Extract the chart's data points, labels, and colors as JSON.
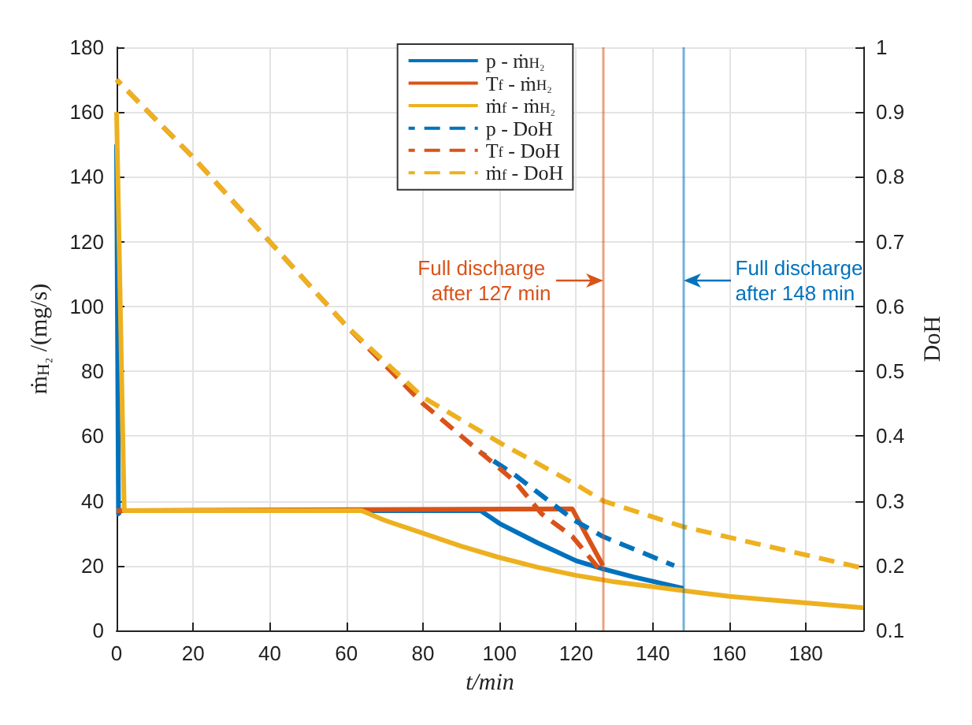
{
  "chart_data": {
    "type": "line",
    "xlabel": "t/min",
    "ylabel": "ṁ$_{H₂}$ /(mg/s)",
    "y2label": "DoH",
    "xlim": [
      0,
      195
    ],
    "xticks": [
      0,
      20,
      40,
      60,
      80,
      100,
      120,
      140,
      160,
      180
    ],
    "ylim": [
      0,
      180
    ],
    "yticks": [
      0,
      20,
      40,
      60,
      80,
      100,
      120,
      140,
      160,
      180
    ],
    "y2lim": [
      0.1,
      1
    ],
    "y2ticks": [
      0.1,
      0.2,
      0.3,
      0.4,
      0.5,
      0.6,
      0.7,
      0.8,
      0.9,
      1
    ],
    "grid": true,
    "legend": "top",
    "marker": "none",
    "series": [
      {
        "name": "p - ṁ$_{H₂}$",
        "color": "#0072bd",
        "line_style": "solid",
        "x": [
          0,
          0.5,
          1,
          95,
          100,
          110,
          120,
          127,
          135,
          148
        ],
        "values": [
          150,
          36,
          37,
          37,
          33,
          27,
          21.5,
          19,
          16.5,
          13
        ]
      },
      {
        "name": "T$_{f}$ - ṁ$_{H₂}$",
        "color": "#d95319",
        "line_style": "solid",
        "x": [
          0,
          0.5,
          119,
          127
        ],
        "values": [
          37,
          37,
          37.5,
          20
        ]
      },
      {
        "name": "ṁ$_{f}$ - ṁ$_{H₂}$",
        "color": "#edb120",
        "line_style": "solid",
        "x": [
          0,
          2,
          64,
          70,
          80,
          90,
          100,
          110,
          120,
          130,
          140,
          150,
          160,
          170,
          180,
          195
        ],
        "values": [
          160,
          37,
          37,
          34,
          30,
          26,
          22.5,
          19.5,
          17,
          15,
          13.5,
          12,
          10.5,
          9.5,
          8.5,
          7
        ]
      },
      {
        "name": "p - DoH",
        "color": "#0072bd",
        "line_style": "dashed",
        "axis": "y2",
        "x": [
          95,
          104,
          119.5,
          127,
          145.6
        ],
        "values": [
          0.375,
          0.34,
          0.27,
          0.245,
          0.2
        ]
      },
      {
        "name": "T$_{f}$ - DoH",
        "color": "#d95319",
        "line_style": "dashed",
        "axis": "y2",
        "x": [
          0,
          20,
          40,
          60,
          80,
          95,
          104,
          111,
          119,
          126
        ],
        "values": [
          0.95,
          0.83,
          0.7,
          0.57,
          0.45,
          0.375,
          0.33,
          0.28,
          0.245,
          0.195
        ]
      },
      {
        "name": "ṁ$_{f}$ - DoH",
        "color": "#edb120",
        "line_style": "dashed",
        "axis": "y2",
        "x": [
          0,
          20,
          40,
          60,
          80,
          100,
          120,
          127,
          148,
          170,
          195
        ],
        "values": [
          0.95,
          0.83,
          0.7,
          0.57,
          0.46,
          0.39,
          0.325,
          0.3,
          0.26,
          0.23,
          0.196
        ]
      }
    ],
    "ref_lines": [
      {
        "axis": "x",
        "value": 127,
        "color": "#d95319"
      },
      {
        "axis": "x",
        "value": 148,
        "color": "#0072bd"
      }
    ],
    "annotations": [
      {
        "text": "Full discharge after 127 min",
        "x": 127,
        "y": 108
      },
      {
        "text": "Full discharge after 148 min",
        "x": 148,
        "y": 108
      }
    ]
  }
}
